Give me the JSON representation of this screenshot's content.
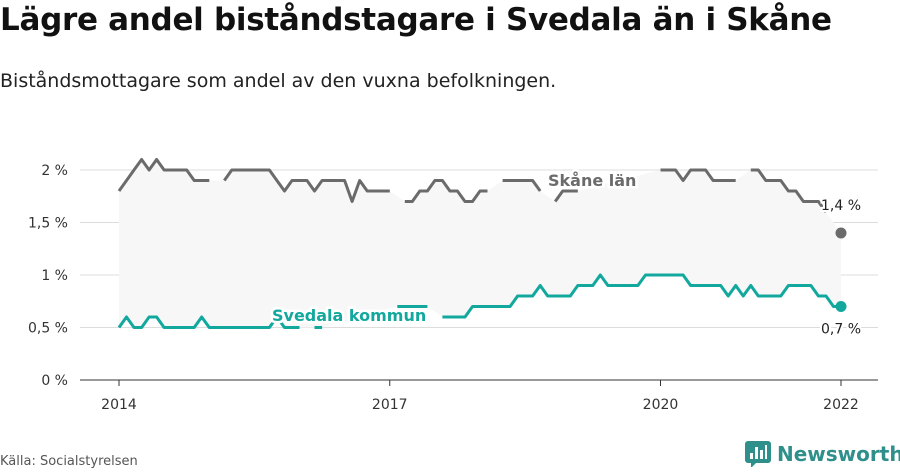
{
  "title": "Lägre andel biståndstagare i Svedala än i Skåne",
  "subtitle": "Biståndsmottagare som andel av den vuxna befolkningen.",
  "source": "Källa: Socialstyrelsen",
  "brand": {
    "name": "Newsworthy",
    "icon": "bar-chart-logo-icon",
    "color": "#2f8f8a"
  },
  "chart_data": {
    "type": "line",
    "title": "",
    "xlabel": "",
    "ylabel": "",
    "x_ticks": [
      "2014",
      "2017",
      "2020",
      "2022"
    ],
    "y_ticks": [
      "0 %",
      "0,5 %",
      "1 %",
      "1,5 %",
      "2 %"
    ],
    "ylim": [
      0,
      2
    ],
    "xlim": [
      "2014-01",
      "2022-01"
    ],
    "grid": true,
    "band_color": "#f7f7f7",
    "series": [
      {
        "name": "Skåne län",
        "color": "#6b6b6b",
        "end_label": "1,4 %",
        "values": [
          [
            "2014-01",
            1.8
          ],
          [
            "2014-02",
            1.9
          ],
          [
            "2014-03",
            2.0
          ],
          [
            "2014-04",
            2.1
          ],
          [
            "2014-05",
            2.0
          ],
          [
            "2014-06",
            2.1
          ],
          [
            "2014-07",
            2.0
          ],
          [
            "2014-08",
            2.0
          ],
          [
            "2014-09",
            2.0
          ],
          [
            "2014-10",
            2.0
          ],
          [
            "2014-11",
            1.9
          ],
          [
            "2014-12",
            1.9
          ],
          [
            "2015-01",
            1.9
          ],
          [
            "2015-02",
            null
          ],
          [
            "2015-03",
            1.9
          ],
          [
            "2015-04",
            2.0
          ],
          [
            "2015-05",
            2.0
          ],
          [
            "2015-06",
            2.0
          ],
          [
            "2015-07",
            2.0
          ],
          [
            "2015-08",
            2.0
          ],
          [
            "2015-09",
            2.0
          ],
          [
            "2015-10",
            1.9
          ],
          [
            "2015-11",
            1.8
          ],
          [
            "2015-12",
            1.9
          ],
          [
            "2016-01",
            1.9
          ],
          [
            "2016-02",
            1.9
          ],
          [
            "2016-03",
            1.8
          ],
          [
            "2016-04",
            1.9
          ],
          [
            "2016-05",
            1.9
          ],
          [
            "2016-06",
            1.9
          ],
          [
            "2016-07",
            1.9
          ],
          [
            "2016-08",
            1.7
          ],
          [
            "2016-09",
            1.9
          ],
          [
            "2016-10",
            1.8
          ],
          [
            "2016-11",
            1.8
          ],
          [
            "2016-12",
            1.8
          ],
          [
            "2017-01",
            1.8
          ],
          [
            "2017-02",
            null
          ],
          [
            "2017-03",
            1.7
          ],
          [
            "2017-04",
            1.7
          ],
          [
            "2017-05",
            1.8
          ],
          [
            "2017-06",
            1.8
          ],
          [
            "2017-07",
            1.9
          ],
          [
            "2017-08",
            1.9
          ],
          [
            "2017-09",
            1.8
          ],
          [
            "2017-10",
            1.8
          ],
          [
            "2017-11",
            1.7
          ],
          [
            "2017-12",
            1.7
          ],
          [
            "2018-01",
            1.8
          ],
          [
            "2018-02",
            1.8
          ],
          [
            "2018-03",
            null
          ],
          [
            "2018-04",
            1.9
          ],
          [
            "2018-05",
            1.9
          ],
          [
            "2018-06",
            1.9
          ],
          [
            "2018-07",
            1.9
          ],
          [
            "2018-08",
            1.9
          ],
          [
            "2018-09",
            1.8
          ],
          [
            "2018-10",
            null
          ],
          [
            "2018-11",
            1.7
          ],
          [
            "2018-12",
            1.8
          ],
          [
            "2019-01",
            1.8
          ],
          [
            "2019-02",
            1.8
          ],
          [
            "2019-03",
            null
          ],
          [
            "2019-04",
            null
          ],
          [
            "2019-05",
            null
          ],
          [
            "2019-06",
            null
          ],
          [
            "2019-07",
            null
          ],
          [
            "2019-08",
            null
          ],
          [
            "2019-09",
            null
          ],
          [
            "2019-10",
            null
          ],
          [
            "2019-11",
            null
          ],
          [
            "2019-12",
            null
          ],
          [
            "2020-01",
            2.0
          ],
          [
            "2020-02",
            2.0
          ],
          [
            "2020-03",
            2.0
          ],
          [
            "2020-04",
            1.9
          ],
          [
            "2020-05",
            2.0
          ],
          [
            "2020-06",
            2.0
          ],
          [
            "2020-07",
            2.0
          ],
          [
            "2020-08",
            1.9
          ],
          [
            "2020-09",
            1.9
          ],
          [
            "2020-10",
            1.9
          ],
          [
            "2020-11",
            1.9
          ],
          [
            "2020-12",
            null
          ],
          [
            "2021-01",
            2.0
          ],
          [
            "2021-02",
            2.0
          ],
          [
            "2021-03",
            1.9
          ],
          [
            "2021-04",
            1.9
          ],
          [
            "2021-05",
            1.9
          ],
          [
            "2021-06",
            1.8
          ],
          [
            "2021-07",
            1.8
          ],
          [
            "2021-08",
            1.7
          ],
          [
            "2021-09",
            1.7
          ],
          [
            "2021-10",
            1.7
          ],
          [
            "2021-11",
            1.6
          ],
          [
            "2021-12",
            null
          ],
          [
            "2022-01",
            1.4
          ]
        ]
      },
      {
        "name": "Svedala kommun",
        "color": "#13a89e",
        "end_label": "0,7 %",
        "values": [
          [
            "2014-01",
            0.5
          ],
          [
            "2014-02",
            0.6
          ],
          [
            "2014-03",
            0.5
          ],
          [
            "2014-04",
            0.5
          ],
          [
            "2014-05",
            0.6
          ],
          [
            "2014-06",
            0.6
          ],
          [
            "2014-07",
            0.5
          ],
          [
            "2014-08",
            0.5
          ],
          [
            "2014-09",
            0.5
          ],
          [
            "2014-10",
            0.5
          ],
          [
            "2014-11",
            0.5
          ],
          [
            "2014-12",
            0.6
          ],
          [
            "2015-01",
            0.5
          ],
          [
            "2015-02",
            0.5
          ],
          [
            "2015-03",
            0.5
          ],
          [
            "2015-04",
            0.5
          ],
          [
            "2015-05",
            0.5
          ],
          [
            "2015-06",
            0.5
          ],
          [
            "2015-07",
            0.5
          ],
          [
            "2015-08",
            0.5
          ],
          [
            "2015-09",
            0.5
          ],
          [
            "2015-10",
            0.6
          ],
          [
            "2015-11",
            0.5
          ],
          [
            "2015-12",
            0.5
          ],
          [
            "2016-01",
            0.5
          ],
          [
            "2016-02",
            null
          ],
          [
            "2016-03",
            0.5
          ],
          [
            "2016-04",
            0.5
          ],
          [
            "2016-05",
            null
          ],
          [
            "2016-06",
            null
          ],
          [
            "2016-07",
            null
          ],
          [
            "2016-08",
            null
          ],
          [
            "2016-09",
            null
          ],
          [
            "2016-10",
            null
          ],
          [
            "2016-11",
            null
          ],
          [
            "2016-12",
            null
          ],
          [
            "2017-01",
            null
          ],
          [
            "2017-02",
            0.7
          ],
          [
            "2017-03",
            0.7
          ],
          [
            "2017-04",
            0.7
          ],
          [
            "2017-05",
            0.7
          ],
          [
            "2017-06",
            0.7
          ],
          [
            "2017-07",
            null
          ],
          [
            "2017-08",
            0.6
          ],
          [
            "2017-09",
            0.6
          ],
          [
            "2017-10",
            0.6
          ],
          [
            "2017-11",
            0.6
          ],
          [
            "2017-12",
            0.7
          ],
          [
            "2018-01",
            0.7
          ],
          [
            "2018-02",
            0.7
          ],
          [
            "2018-03",
            0.7
          ],
          [
            "2018-04",
            0.7
          ],
          [
            "2018-05",
            0.7
          ],
          [
            "2018-06",
            0.8
          ],
          [
            "2018-07",
            0.8
          ],
          [
            "2018-08",
            0.8
          ],
          [
            "2018-09",
            0.9
          ],
          [
            "2018-10",
            0.8
          ],
          [
            "2018-11",
            0.8
          ],
          [
            "2018-12",
            0.8
          ],
          [
            "2019-01",
            0.8
          ],
          [
            "2019-02",
            0.9
          ],
          [
            "2019-03",
            0.9
          ],
          [
            "2019-04",
            0.9
          ],
          [
            "2019-05",
            1.0
          ],
          [
            "2019-06",
            0.9
          ],
          [
            "2019-07",
            0.9
          ],
          [
            "2019-08",
            0.9
          ],
          [
            "2019-09",
            0.9
          ],
          [
            "2019-10",
            0.9
          ],
          [
            "2019-11",
            1.0
          ],
          [
            "2019-12",
            1.0
          ],
          [
            "2020-01",
            1.0
          ],
          [
            "2020-02",
            1.0
          ],
          [
            "2020-03",
            1.0
          ],
          [
            "2020-04",
            1.0
          ],
          [
            "2020-05",
            0.9
          ],
          [
            "2020-06",
            0.9
          ],
          [
            "2020-07",
            0.9
          ],
          [
            "2020-08",
            0.9
          ],
          [
            "2020-09",
            0.9
          ],
          [
            "2020-10",
            0.8
          ],
          [
            "2020-11",
            0.9
          ],
          [
            "2020-12",
            0.8
          ],
          [
            "2021-01",
            0.9
          ],
          [
            "2021-02",
            0.8
          ],
          [
            "2021-03",
            0.8
          ],
          [
            "2021-04",
            0.8
          ],
          [
            "2021-05",
            0.8
          ],
          [
            "2021-06",
            0.9
          ],
          [
            "2021-07",
            0.9
          ],
          [
            "2021-08",
            0.9
          ],
          [
            "2021-09",
            0.9
          ],
          [
            "2021-10",
            0.8
          ],
          [
            "2021-11",
            0.8
          ],
          [
            "2021-12",
            0.7
          ],
          [
            "2022-01",
            0.7
          ]
        ]
      }
    ]
  }
}
